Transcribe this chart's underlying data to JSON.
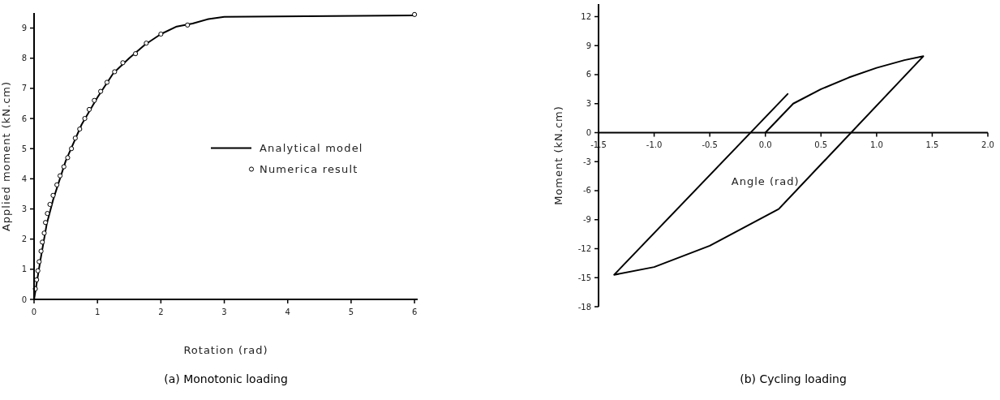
{
  "chart_data": [
    {
      "type": "line",
      "title": "(a) Monotonic loading",
      "xlabel": "Rotation (rad)",
      "ylabel": "Applied moment (kN.cm)",
      "xlim": [
        0,
        6.05
      ],
      "ylim": [
        0,
        9.5
      ],
      "xticks": [
        0,
        1,
        2,
        3,
        4,
        5,
        6
      ],
      "yticks": [
        0,
        1,
        2,
        3,
        4,
        5,
        6,
        7,
        8,
        9
      ],
      "legend": "right",
      "series": [
        {
          "name": "Analytical model",
          "color": "#000000",
          "x": [
            0,
            0.1,
            0.2,
            0.3,
            0.5,
            0.75,
            1,
            1.25,
            1.5,
            1.75,
            2,
            2.25,
            2.5,
            2.75,
            3,
            6
          ],
          "values": [
            0,
            1.3,
            2.5,
            3.3,
            4.6,
            5.8,
            6.7,
            7.5,
            8.0,
            8.45,
            8.8,
            9.05,
            9.15,
            9.3,
            9.37,
            9.42
          ]
        },
        {
          "name": "Numerica result",
          "type": "scatter",
          "color": "#000000",
          "marker": "circle",
          "x": [
            0.02,
            0.04,
            0.06,
            0.08,
            0.11,
            0.13,
            0.16,
            0.18,
            0.21,
            0.25,
            0.3,
            0.36,
            0.41,
            0.47,
            0.53,
            0.59,
            0.65,
            0.72,
            0.8,
            0.87,
            0.95,
            1.05,
            1.15,
            1.27,
            1.4,
            1.6,
            1.77,
            2.0,
            2.42,
            6.0
          ],
          "values": [
            0.35,
            0.65,
            0.95,
            1.25,
            1.6,
            1.9,
            2.2,
            2.55,
            2.85,
            3.15,
            3.45,
            3.8,
            4.1,
            4.4,
            4.7,
            5.0,
            5.35,
            5.65,
            6.0,
            6.3,
            6.6,
            6.9,
            7.2,
            7.55,
            7.85,
            8.15,
            8.5,
            8.8,
            9.1,
            9.45
          ]
        }
      ]
    },
    {
      "type": "line",
      "title": "(b) Cycling loading",
      "xlabel": "Angle (rad)",
      "ylabel": "Moment (kN.cm)",
      "xlim": [
        -1.5,
        2.0
      ],
      "ylim": [
        -18,
        13.3
      ],
      "xticks": [
        {
          "value": -1.5,
          "label": "-1.5"
        },
        {
          "value": -1.0,
          "label": "-1.0"
        },
        {
          "value": -0.5,
          "label": "-0.5"
        },
        {
          "value": 0,
          "label": "0.0"
        },
        {
          "value": 0.5,
          "label": "0.5"
        },
        {
          "value": 1.0,
          "label": "1.0"
        },
        {
          "value": 1.5,
          "label": "1.5"
        },
        {
          "value": 2.0,
          "label": "2.0"
        }
      ],
      "yticks": [
        -18,
        -15,
        -12,
        -9,
        -6,
        -3,
        0,
        3,
        6,
        9,
        12
      ],
      "series": [
        {
          "color": "#000000",
          "x": [
            0,
            0.25,
            0.5,
            0.75,
            1.0,
            1.25,
            1.42,
            0.12,
            -0.5,
            -1.0,
            -1.36,
            0.2
          ],
          "values": [
            0,
            3,
            4.5,
            5.7,
            6.7,
            7.5,
            7.9,
            -7.9,
            -11.7,
            -13.9,
            -14.7,
            4.0
          ]
        }
      ]
    }
  ]
}
